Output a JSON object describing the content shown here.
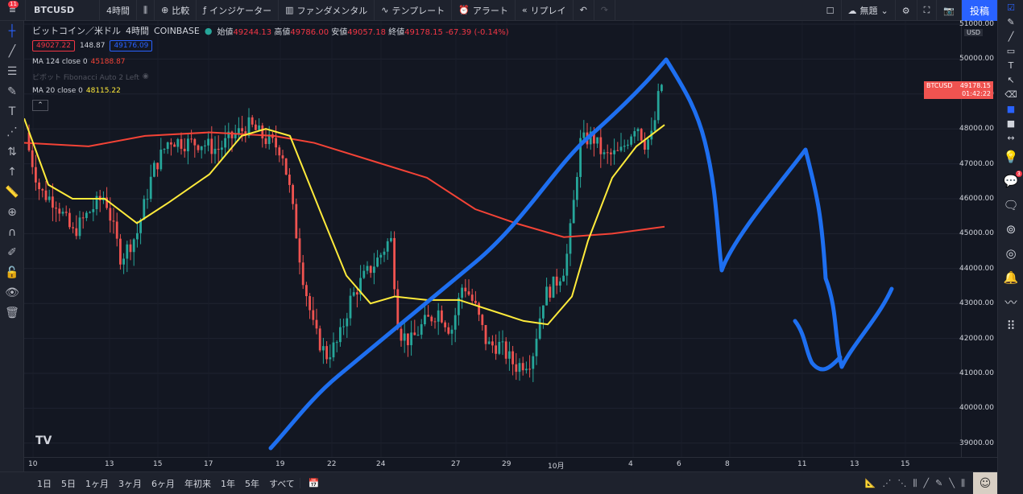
{
  "topbar": {
    "menu_badge": "11",
    "symbol": "BTCUSD",
    "interval": "4時間",
    "compare": "比較",
    "indicators": "インジケーター",
    "fundamentals": "ファンダメンタル",
    "templates": "テンプレート",
    "alert": "アラート",
    "replay": "リプレイ",
    "layout_name": "無題",
    "post": "投稿"
  },
  "legend": {
    "title": "ビットコイン／米ドル",
    "interval": "4時間",
    "exchange": "COINBASE",
    "open_label": "始値",
    "open": "49244.13",
    "high_label": "高値",
    "high": "49786.00",
    "low_label": "安値",
    "low": "49057.18",
    "close_label": "終値",
    "close": "49178.15",
    "change": "-67.39 (-0.14%)",
    "bid": "49027.22",
    "spread": "148.87",
    "ask": "49176.09",
    "ma124_label": "MA 124 close 0",
    "ma124_value": "45188.87",
    "pivot_label": "ピボット Fibonacci Auto 2 Left",
    "ma20_label": "MA 20 close 0",
    "ma20_value": "48115.22"
  },
  "price_axis": {
    "currency": "USD",
    "ticks": [
      "51000.00",
      "50000.00",
      "49000.00",
      "48000.00",
      "47000.00",
      "46000.00",
      "45000.00",
      "44000.00",
      "43000.00",
      "42000.00",
      "41000.00",
      "40000.00",
      "39000.00"
    ],
    "tag_symbol": "BTCUSD",
    "tag_price": "49178.15",
    "tag_countdown": "01:42:22"
  },
  "time_axis": {
    "ticks": [
      "10",
      "13",
      "15",
      "17",
      "19",
      "22",
      "24",
      "27",
      "29",
      "10月",
      "4",
      "6",
      "8",
      "11",
      "13",
      "15"
    ]
  },
  "bottombar": {
    "ranges": [
      "1日",
      "5日",
      "1ヶ月",
      "3ヶ月",
      "6ヶ月",
      "年初来",
      "1年",
      "5年",
      "すべて"
    ]
  },
  "colors": {
    "background": "#131722",
    "up": "#26a69a",
    "down": "#ef5350",
    "ma124": "#f44336",
    "ma20": "#ffeb3b",
    "drawing": "#1e6ff0"
  },
  "right_badge": "3"
}
